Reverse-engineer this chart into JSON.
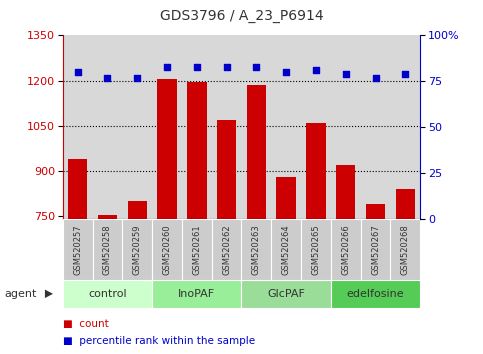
{
  "title": "GDS3796 / A_23_P6914",
  "samples": [
    "GSM520257",
    "GSM520258",
    "GSM520259",
    "GSM520260",
    "GSM520261",
    "GSM520262",
    "GSM520263",
    "GSM520264",
    "GSM520265",
    "GSM520266",
    "GSM520267",
    "GSM520268"
  ],
  "bar_values": [
    940,
    755,
    800,
    1205,
    1195,
    1070,
    1185,
    880,
    1060,
    920,
    790,
    840
  ],
  "percentile_values": [
    80,
    77,
    77,
    83,
    83,
    83,
    83,
    80,
    81,
    79,
    77,
    79
  ],
  "groups": [
    {
      "label": "control",
      "start": 0,
      "end": 3,
      "color": "#ccffcc"
    },
    {
      "label": "InoPAF",
      "start": 3,
      "end": 6,
      "color": "#99ee99"
    },
    {
      "label": "GlcPAF",
      "start": 6,
      "end": 9,
      "color": "#99dd99"
    },
    {
      "label": "edelfosine",
      "start": 9,
      "end": 12,
      "color": "#55cc55"
    }
  ],
  "ylim_left": [
    740,
    1350
  ],
  "ylim_right": [
    0,
    100
  ],
  "yticks_left": [
    750,
    900,
    1050,
    1200,
    1350
  ],
  "yticks_right": [
    0,
    25,
    50,
    75,
    100
  ],
  "bar_color": "#cc0000",
  "dot_color": "#0000cc",
  "bar_width": 0.65,
  "background_color": "#ffffff",
  "plot_bg_color": "#d8d8d8",
  "left_axis_color": "#cc0000",
  "right_axis_color": "#0000cc",
  "hlines": [
    900,
    1050,
    1200
  ],
  "sample_box_color": "#cccccc",
  "group_colors": [
    "#ccffcc",
    "#99ee99",
    "#99dd99",
    "#55cc55"
  ]
}
